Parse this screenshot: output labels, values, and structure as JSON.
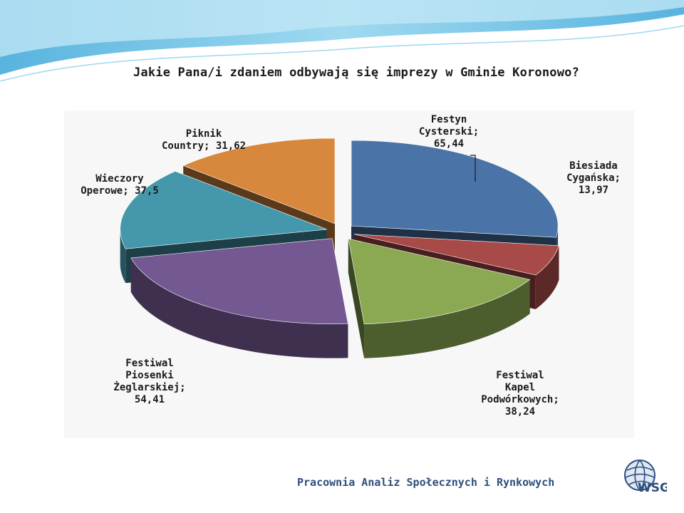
{
  "title": "Jakie Pana/i zdaniem odbywają się imprezy w Gminie Koronowo?",
  "footer": {
    "organization": "Pracownia Analiz Społecznych i Rynkowych",
    "logo_text": "WSG"
  },
  "chart_data": {
    "type": "pie",
    "title": "Jakie Pana/i zdaniem odbywają się imprezy w Gminie Koronowo?",
    "style": "3d-exploded",
    "slices": [
      {
        "label": "Festyn Cysterski",
        "value": 65.44,
        "value_text": "65,44",
        "color": "#4a74a8"
      },
      {
        "label": "Biesiada Cygańska",
        "value": 13.97,
        "value_text": "13,97",
        "color": "#a84a48"
      },
      {
        "label": "Festiwal Kapel Podwórkowych",
        "value": 38.24,
        "value_text": "38,24",
        "color": "#8ba953"
      },
      {
        "label": "Festiwal Piosenki Żeglarskiej",
        "value": 54.41,
        "value_text": "54,41",
        "color": "#735892"
      },
      {
        "label": "Wieczory Operowe",
        "value": 37.5,
        "value_text": "37,5",
        "color": "#4598ab"
      },
      {
        "label": "Piknik Country",
        "value": 31.62,
        "value_text": "31,62",
        "color": "#d8883d"
      }
    ],
    "legend": "none",
    "data_labels": "category; value"
  }
}
